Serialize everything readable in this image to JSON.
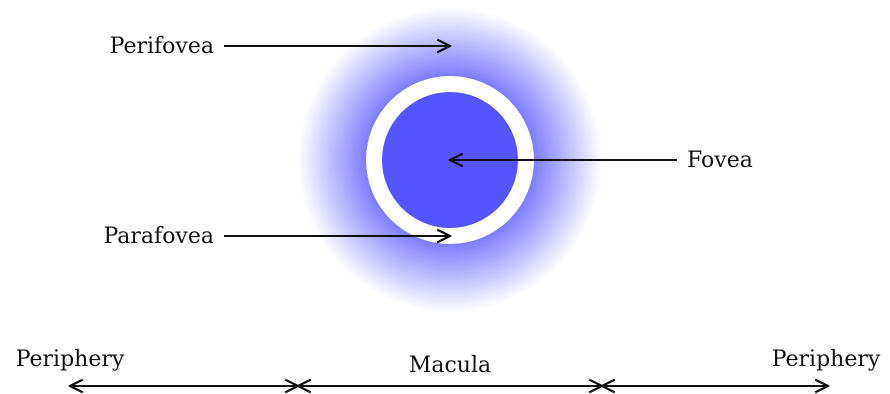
{
  "labels": {
    "perifovea": "Perifovea",
    "fovea": "Fovea",
    "parafovea": "Parafovea",
    "periphery_left": "Periphery",
    "macula": "Macula",
    "periphery_right": "Periphery"
  }
}
